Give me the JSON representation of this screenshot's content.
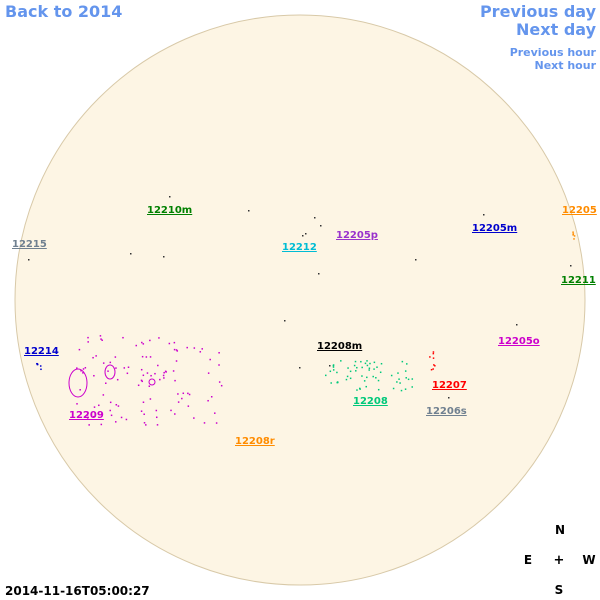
{
  "nav": {
    "back": "Back to 2014",
    "previous_day": "Previous day",
    "next_day": "Next day",
    "previous_hour": "Previous hour",
    "next_hour": "Next hour"
  },
  "regions": [
    {
      "label": "12210m",
      "color": "#008000"
    },
    {
      "label": "12215",
      "color": "#708090"
    },
    {
      "label": "12212",
      "color": "#00bcd4"
    },
    {
      "label": "12205p",
      "color": "#9932cc"
    },
    {
      "label": "12205m",
      "color": "#0000cd"
    },
    {
      "label": "12205",
      "color": "#ff8c00"
    },
    {
      "label": "12211",
      "color": "#008000"
    },
    {
      "label": "12214",
      "color": "#0000cd"
    },
    {
      "label": "12208m",
      "color": "#000000"
    },
    {
      "label": "12205o",
      "color": "#cc00cc"
    },
    {
      "label": "12207",
      "color": "#ff0000"
    },
    {
      "label": "12208",
      "color": "#00c87a"
    },
    {
      "label": "12206s",
      "color": "#708090"
    },
    {
      "label": "12209",
      "color": "#cc00cc"
    },
    {
      "label": "12208r",
      "color": "#ff8c00"
    }
  ],
  "timestamp": "2014-11-16T05:00:27",
  "compass": {
    "north": "N",
    "east": "E",
    "center": "+",
    "west": "W",
    "south": "S"
  }
}
